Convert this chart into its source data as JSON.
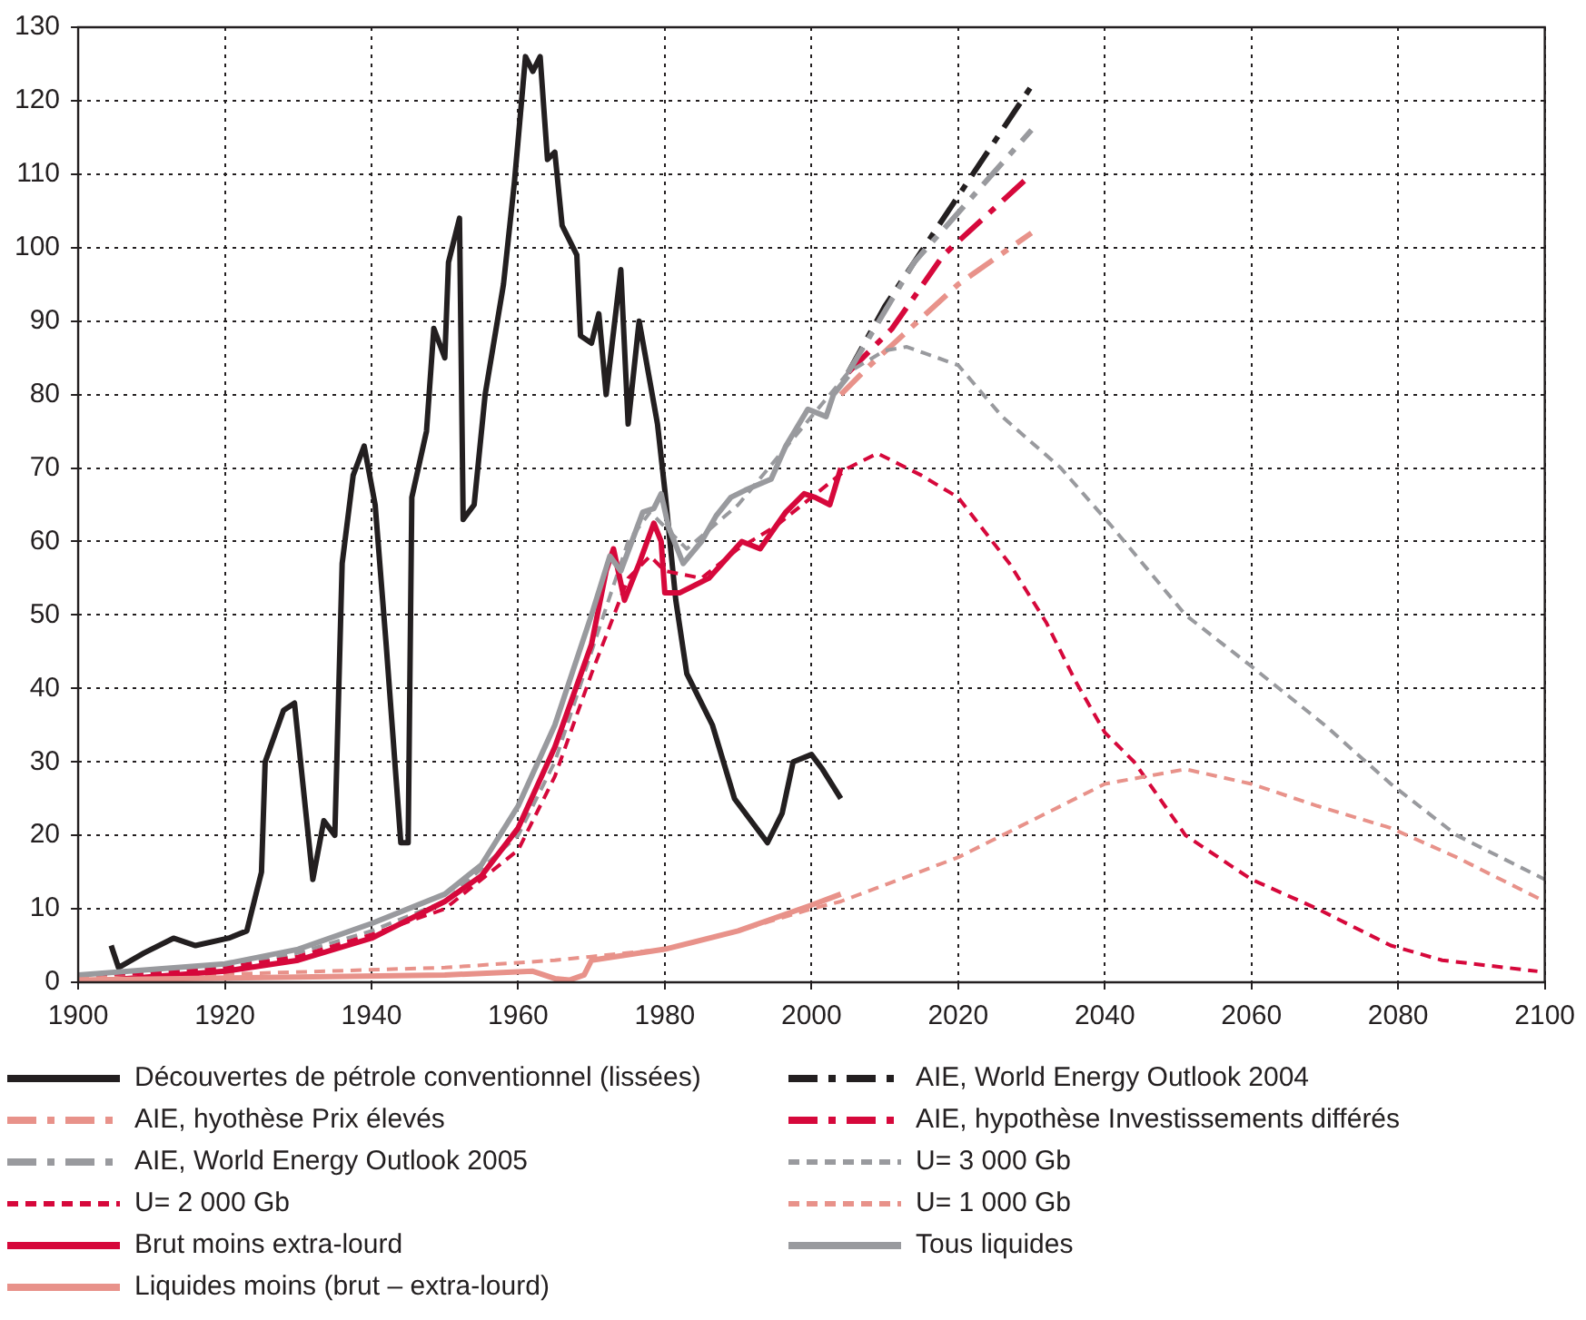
{
  "chart_data": {
    "type": "line",
    "xlim": [
      1900,
      2100
    ],
    "xticks": [
      1900,
      1920,
      1940,
      1960,
      1980,
      2000,
      2020,
      2040,
      2060,
      2080,
      2100
    ],
    "ylim": [
      0,
      130
    ],
    "yticks": [
      0,
      10,
      20,
      30,
      40,
      50,
      60,
      70,
      80,
      90,
      100,
      110,
      120,
      130
    ],
    "grid": true,
    "legend": "bottom",
    "marker": "none",
    "series": [
      {
        "name": "Découvertes de pétrole conventionnel (lissées)",
        "color": "#231f20",
        "line_style": "solid",
        "x": [
          1904.5,
          1905.5,
          1909,
          1913,
          1916,
          1920.5,
          1923,
          1925,
          1925.5,
          1928,
          1929.5,
          1932,
          1933.5,
          1935,
          1936,
          1937.5,
          1939,
          1940.5,
          1942,
          1944,
          1945,
          1945.5,
          1947.5,
          1948.5,
          1950,
          1950.5,
          1952,
          1952.5,
          1954,
          1955.5,
          1958,
          1959.5,
          1961,
          1962,
          1963,
          1964,
          1965,
          1966,
          1968,
          1968.5,
          1970,
          1971,
          1972,
          1974,
          1975,
          1976.5,
          1979,
          1980,
          1981.5,
          1983,
          1986.5,
          1989.5,
          1994,
          1996,
          1997.5,
          2000,
          2001.5,
          2004
        ],
        "values": [
          5,
          2,
          4,
          6,
          5,
          6,
          7,
          15,
          30,
          37,
          38,
          14,
          22,
          20,
          57,
          69,
          73,
          65,
          46,
          19,
          19,
          66,
          75,
          89,
          85,
          98,
          104,
          63,
          65,
          80,
          95,
          109,
          126,
          124,
          126,
          112,
          113,
          103,
          99,
          88,
          87,
          91,
          80,
          97,
          76,
          90,
          76,
          67,
          52,
          42,
          35,
          25,
          19,
          23,
          30,
          31,
          29,
          25
        ]
      },
      {
        "name": "AIE, World Energy Outlook 2004",
        "color": "#231f20",
        "line_style": "dashdot",
        "x": [
          2005,
          2010,
          2020,
          2030
        ],
        "values": [
          83,
          92,
          107,
          122
        ]
      },
      {
        "name": "AIE, hyothèse Prix élevés",
        "color": "#e8928a",
        "line_style": "dashdot",
        "x": [
          2004,
          2008,
          2020,
          2030
        ],
        "values": [
          80,
          84,
          95,
          102
        ]
      },
      {
        "name": "AIE, hypothèse Investissements différés",
        "color": "#d6083b",
        "line_style": "dashdot",
        "x": [
          2005,
          2011,
          2018,
          2030
        ],
        "values": [
          83,
          89,
          99,
          110
        ]
      },
      {
        "name": "AIE, World Energy Outlook 2005",
        "color": "#999a9e",
        "line_style": "dashdot",
        "x": [
          2005,
          2014,
          2030
        ],
        "values": [
          83,
          98,
          116
        ]
      },
      {
        "name": "U= 3 000 Gb",
        "color": "#999a9e",
        "line_style": "dashed",
        "x": [
          1900,
          1920,
          1930,
          1940,
          1950,
          1960,
          1965,
          1970,
          1975,
          1978,
          1980,
          1983,
          1990,
          2000,
          2005,
          2010,
          2013,
          2020,
          2026,
          2034,
          2041,
          2051,
          2060,
          2070,
          2079,
          2088,
          2100
        ],
        "values": [
          0.5,
          2,
          4,
          7,
          11,
          20,
          30,
          45,
          60,
          64,
          62,
          59,
          65,
          77,
          83,
          86,
          86.5,
          84,
          77,
          70,
          62,
          50,
          43,
          35,
          27,
          20,
          14
        ]
      },
      {
        "name": "U= 2 000 Gb",
        "color": "#d6083b",
        "line_style": "dashed",
        "x": [
          1900,
          1920,
          1930,
          1940,
          1950,
          1960,
          1965,
          1970,
          1975,
          1978,
          1980,
          1985,
          1990,
          1995,
          2000,
          2005,
          2009,
          2015,
          2020,
          2027,
          2032,
          2036,
          2040,
          2044,
          2051,
          2060,
          2069,
          2079,
          2086,
          2099
        ],
        "values": [
          0.5,
          2,
          3.5,
          6.5,
          10,
          18,
          28,
          42,
          55,
          58,
          56,
          55,
          59,
          62,
          66,
          70,
          72,
          69,
          66,
          57,
          49,
          41,
          34,
          30,
          20,
          14,
          10,
          5,
          3,
          1.5
        ]
      },
      {
        "name": "U= 1 000 Gb",
        "color": "#e8928a",
        "line_style": "dashed",
        "x": [
          1900,
          1950,
          1965,
          1970,
          1980,
          1990,
          2000,
          2004,
          2020,
          2034,
          2040,
          2051,
          2060,
          2069,
          2079,
          2088,
          2100
        ],
        "values": [
          0.5,
          2,
          3,
          3.5,
          4.5,
          7,
          10,
          11,
          17,
          24,
          27,
          29,
          27,
          24,
          21,
          17,
          11
        ]
      },
      {
        "name": "Brut moins extra-lourd",
        "color": "#d6083b",
        "line_style": "solid",
        "x": [
          1900,
          1920,
          1930,
          1940,
          1950,
          1955,
          1960,
          1965,
          1970,
          1972,
          1973,
          1974.5,
          1976.5,
          1978.5,
          1979.5,
          1980,
          1982,
          1986,
          1990.5,
          1993,
          1996.5,
          1999,
          2000.5,
          2002.5,
          2004
        ],
        "values": [
          0,
          1.5,
          3,
          6,
          11,
          14.5,
          21,
          32,
          46,
          56,
          59,
          52,
          57,
          62.5,
          60,
          53,
          53,
          55,
          60,
          59,
          64,
          66.5,
          66,
          65,
          70
        ]
      },
      {
        "name": "Tous liquides",
        "color": "#999a9e",
        "line_style": "solid",
        "x": [
          1900,
          1920,
          1930,
          1940,
          1950,
          1955,
          1960,
          1965,
          1970,
          1972.5,
          1974,
          1977,
          1978.5,
          1979.5,
          1980.5,
          1982.5,
          1985,
          1987,
          1989,
          1991,
          1994.5,
          1996.5,
          1998,
          1999.5,
          2002,
          2003,
          2005
        ],
        "values": [
          1,
          2.5,
          4.5,
          8,
          12,
          16,
          24,
          35,
          50,
          58,
          56,
          64,
          64.5,
          66.5,
          62,
          57,
          60,
          63.5,
          66,
          67,
          68.5,
          73,
          75.5,
          78,
          77,
          80,
          82.5
        ]
      },
      {
        "name": "Liquides moins (brut – extra-lourd)",
        "color": "#e8928a",
        "line_style": "solid",
        "x": [
          1900,
          1950,
          1962,
          1965,
          1967,
          1969,
          1970,
          1980,
          1990,
          2000,
          2004
        ],
        "values": [
          0.3,
          1,
          1.5,
          0.5,
          0.3,
          1,
          3,
          4.5,
          7,
          10.5,
          12
        ]
      }
    ]
  }
}
